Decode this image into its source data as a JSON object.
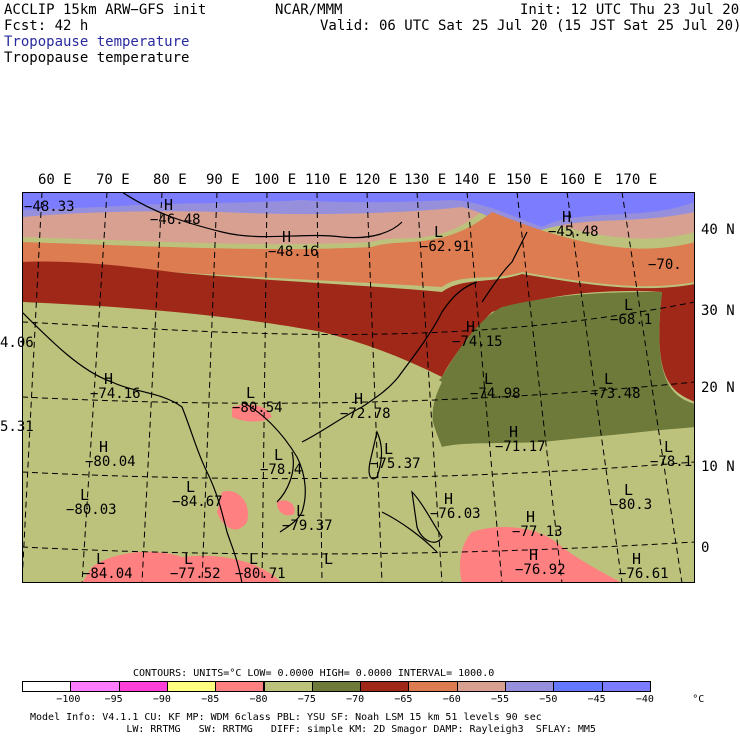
{
  "header": {
    "line1_left": "ACCLIP 15km ARW−GFS init",
    "line1_center": "NCAR/MMM",
    "line1_right": "Init: 12 UTC Thu 23 Jul 20",
    "line2_left": "Fcst:   42 h",
    "line2_right": "Valid: 06 UTC Sat 25 Jul 20 (15 JST Sat 25 Jul 20)",
    "field_title_blue": "Tropopause temperature",
    "field_title_black": "Tropopause temperature"
  },
  "map": {
    "lon_labels": [
      "60 E",
      "70 E",
      "80 E",
      "90 E",
      "100 E",
      "110 E",
      "120 E",
      "130 E",
      "140 E",
      "150 E",
      "160 E",
      "170 E"
    ],
    "lat_labels": [
      "40 N",
      "30 N",
      "20 N",
      "10 N",
      "0"
    ],
    "centers": [
      {
        "type": "",
        "value": "−48.33"
      },
      {
        "type": "H",
        "value": "−46.48"
      },
      {
        "type": "H",
        "value": "−48.16"
      },
      {
        "type": "L",
        "value": "−62.91"
      },
      {
        "type": "H",
        "value": "−45.48"
      },
      {
        "type": "",
        "value": "−70."
      },
      {
        "type": "L",
        "value": "−68.1"
      },
      {
        "type": "H",
        "value": "−74.15"
      },
      {
        "type": "",
        "value": "4.06"
      },
      {
        "type": "H",
        "value": "−74.16"
      },
      {
        "type": "L",
        "value": "−80.54"
      },
      {
        "type": "H",
        "value": "−72.78"
      },
      {
        "type": "L",
        "value": "−74.98"
      },
      {
        "type": "L",
        "value": "−73.48"
      },
      {
        "type": "",
        "value": "5.31"
      },
      {
        "type": "H",
        "value": "−71.17"
      },
      {
        "type": "H",
        "value": "−80.04"
      },
      {
        "type": "L",
        "value": "−78.4"
      },
      {
        "type": "L",
        "value": "−75.37"
      },
      {
        "type": "L",
        "value": "−78.1"
      },
      {
        "type": "L",
        "value": "−80.03"
      },
      {
        "type": "L",
        "value": "−84.67"
      },
      {
        "type": "L",
        "value": "−79.37"
      },
      {
        "type": "H",
        "value": "−76.03"
      },
      {
        "type": "H",
        "value": "−77.13"
      },
      {
        "type": "L",
        "value": "−80.3"
      },
      {
        "type": "L",
        "value": "−84.04"
      },
      {
        "type": "L",
        "value": "−77.52"
      },
      {
        "type": "L",
        "value": "−80.71"
      },
      {
        "type": "L",
        "value": ""
      },
      {
        "type": "H",
        "value": "−76.92"
      },
      {
        "type": "H",
        "value": "−76.61"
      }
    ]
  },
  "legend": {
    "contours_line": "CONTOURS:  UNITS=°C  LOW=  0.0000      HIGH=  0.0000      INTERVAL=   1000.0",
    "scale_values": [
      "−100",
      "−95",
      "−90",
      "−85",
      "−80",
      "−75",
      "−70",
      "−65",
      "−60",
      "−55",
      "−50",
      "−45",
      "−40",
      "°C"
    ],
    "colors": [
      "#ffffff",
      "#ff7cff",
      "#ff40d8",
      "#ffff80",
      "#ff8080",
      "#bcc27c",
      "#6e7a3a",
      "#a02818",
      "#dc7c50",
      "#d8a090",
      "#9690dc",
      "#6478ff",
      "#7c7cff"
    ]
  },
  "footer": {
    "line1": "Model Info: V4.1.1     CU: KF       MP: WDM 6class  PBL: YSU        SF: Noah LSM      15 km    51 levels   90 sec",
    "line2": "                LW: RRTMG   SW: RRTMG   DIFF: simple KM: 2D Smagor DAMP: Rayleigh3  SFLAY: MM5"
  }
}
